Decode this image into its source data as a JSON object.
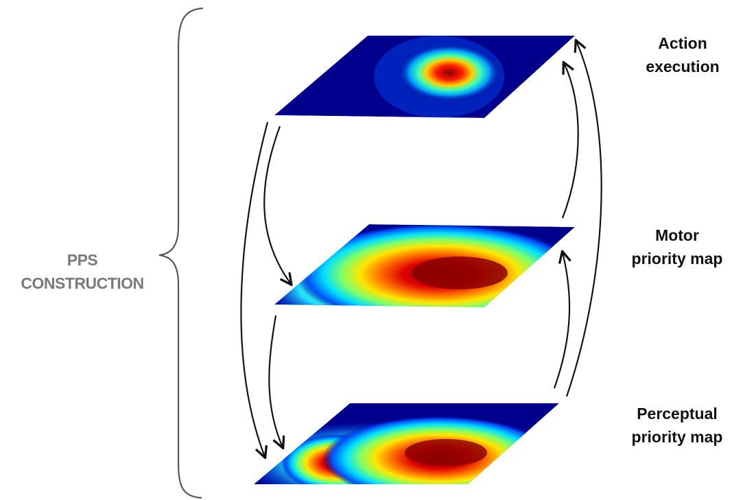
{
  "labels": {
    "pps_line1": "PPS",
    "pps_line2": "CONSTRUCTION",
    "action_line1": "Action",
    "action_line2": "execution",
    "motor_line1": "Motor",
    "motor_line2": "priority map",
    "perceptual_line1": "Perceptual",
    "perceptual_line2": "priority map"
  },
  "colors": {
    "map_base": "#00008c",
    "brace": "#555555",
    "arrow": "#111111",
    "pps_text": "#7a7a7a"
  }
}
